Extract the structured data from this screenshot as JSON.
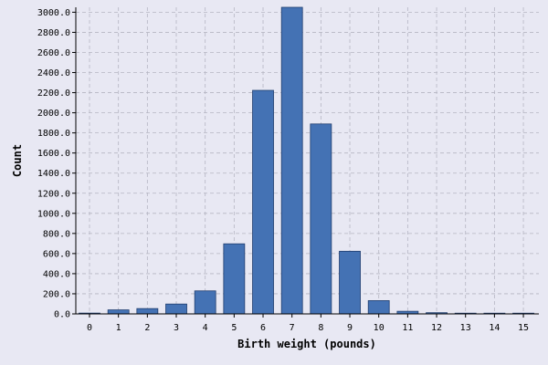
{
  "colors": {
    "background": "#e8e8f3",
    "bar_fill": "#4472b4",
    "bar_stroke": "#1f3d6e"
  },
  "chart_data": {
    "type": "bar",
    "title": "",
    "xlabel": "Birth weight (pounds)",
    "ylabel": "Count",
    "categories": [
      "0",
      "1",
      "2",
      "3",
      "4",
      "5",
      "6",
      "7",
      "8",
      "9",
      "10",
      "11",
      "12",
      "13",
      "14",
      "15"
    ],
    "values": [
      8,
      40,
      53,
      98,
      229,
      697,
      2223,
      3049,
      1889,
      623,
      132,
      26,
      12,
      5,
      3,
      1
    ],
    "ylim": [
      0,
      3049
    ],
    "yticks": [
      0,
      200,
      400,
      600,
      800,
      1000,
      1200,
      1400,
      1600,
      1800,
      2000,
      2200,
      2400,
      2600,
      2800,
      3000
    ],
    "ytick_labels": [
      "0.0",
      "200.0",
      "400.0",
      "600.0",
      "800.0",
      "1000.0",
      "1200.0",
      "1400.0",
      "1600.0",
      "1800.0",
      "2000.0",
      "2200.0",
      "2400.0",
      "2600.0",
      "2800.0",
      "3000.0"
    ],
    "grid": true,
    "legend": "none"
  }
}
